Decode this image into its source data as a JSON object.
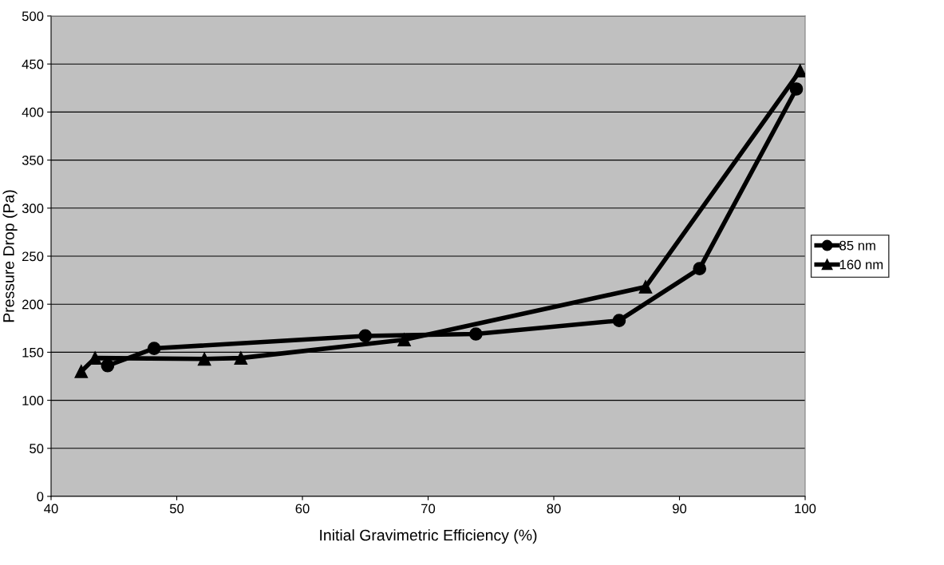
{
  "chart_data": {
    "type": "line",
    "xlabel": "Initial Gravimetric Efficiency (%)",
    "ylabel": "Pressure Drop (Pa)",
    "xlim": [
      40,
      100
    ],
    "xticks": [
      40,
      50,
      60,
      70,
      80,
      90,
      100
    ],
    "ylim": [
      0,
      500
    ],
    "yticks": [
      0,
      50,
      100,
      150,
      200,
      250,
      300,
      350,
      400,
      450,
      500
    ],
    "grid": "y",
    "legend": "right",
    "series": [
      {
        "name": "85 nm",
        "color": "#000000",
        "marker": "circle",
        "x": [
          44.5,
          48.2,
          65.0,
          73.8,
          85.2,
          91.6,
          99.3
        ],
        "values": [
          136,
          154,
          167,
          169,
          183,
          237,
          424
        ]
      },
      {
        "name": "160 nm",
        "color": "#000000",
        "marker": "triangle",
        "x": [
          42.4,
          43.5,
          52.2,
          55.1,
          68.1,
          87.3,
          99.6
        ],
        "values": [
          130,
          144,
          143,
          144,
          163,
          218,
          443
        ]
      }
    ]
  }
}
